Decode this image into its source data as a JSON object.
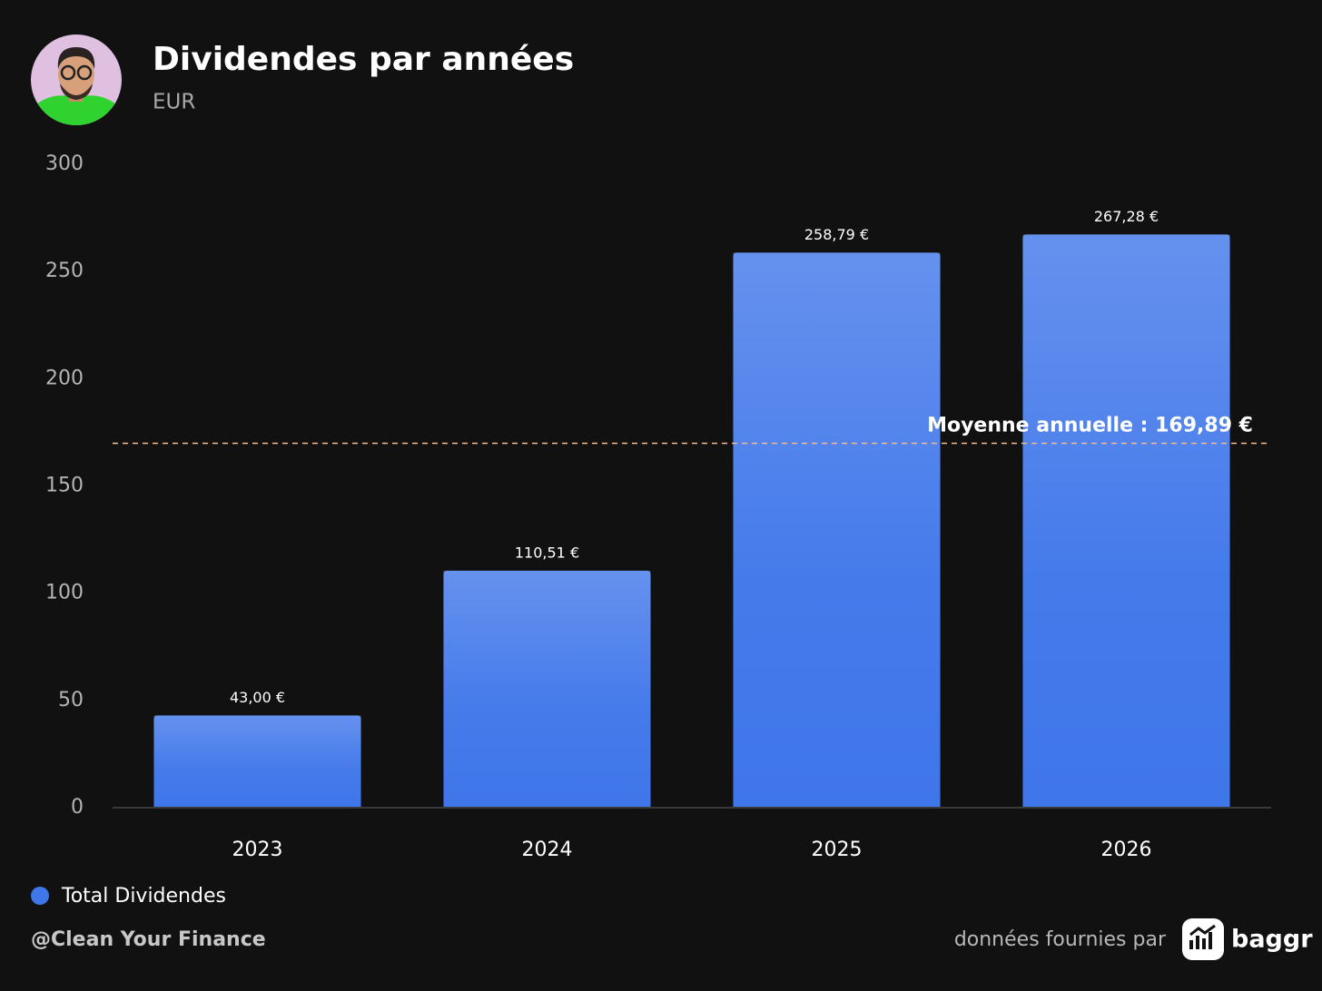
{
  "chart_data": {
    "type": "bar",
    "title": "Dividendes par années",
    "subtitle": "EUR",
    "categories": [
      "2023",
      "2024",
      "2025",
      "2026"
    ],
    "series": [
      {
        "name": "Total Dividendes",
        "color": "#3f76ea",
        "values": [
          43.0,
          110.51,
          258.79,
          267.28
        ],
        "value_labels": [
          "43,00 €",
          "110,51 €",
          "258,79 €",
          "267,28 €"
        ]
      }
    ],
    "ylim": [
      0,
      300
    ],
    "yticks": [
      0,
      50,
      100,
      150,
      200,
      250,
      300
    ],
    "grid": false,
    "average_line": {
      "value": 169.89,
      "label": "Moyenne annuelle : 169,89 €",
      "color": "#f2b98c"
    }
  },
  "footer": {
    "credit": "@Clean Your Finance",
    "source_text": "données fournies par",
    "brand": "baggr"
  }
}
